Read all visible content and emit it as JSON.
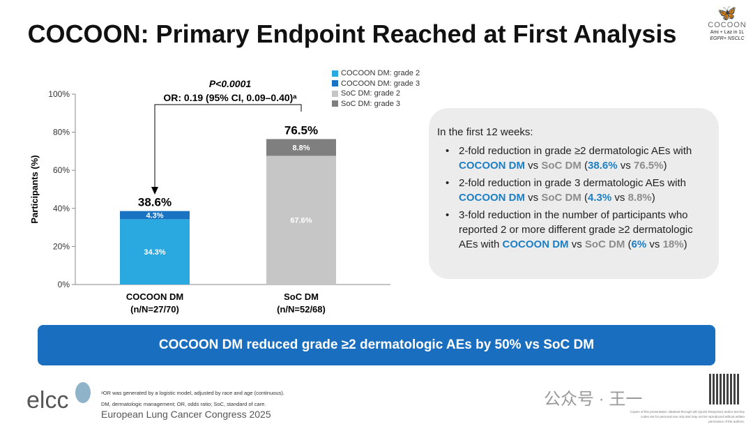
{
  "title": "COCOON: Primary Endpoint Reached at First Analysis",
  "logo": {
    "name": "COCOON",
    "line1": "Ami + Laz in 1L",
    "line2": "EGFR+ NSCLC"
  },
  "stat": {
    "p": "P<0.0001",
    "or": "OR: 0.19 (95% CI, 0.09–0.40)ᵃ"
  },
  "colors": {
    "cocoon_g2": "#2aa8e0",
    "cocoon_g3": "#1a72c2",
    "soc_g2": "#c6c6c6",
    "soc_g3": "#7f7f7f"
  },
  "chart_data": {
    "type": "bar",
    "stacked": true,
    "categories": [
      "COCOON DM",
      "SoC DM"
    ],
    "category_sublabels": [
      "(n/N=27/70)",
      "(n/N=52/68)"
    ],
    "series": [
      {
        "name": "COCOON DM: grade 2",
        "values": [
          34.3,
          null
        ],
        "labels": [
          "34.3%",
          ""
        ]
      },
      {
        "name": "COCOON DM: grade 3",
        "values": [
          4.3,
          null
        ],
        "labels": [
          "4.3%",
          ""
        ]
      },
      {
        "name": "SoC DM: grade 2",
        "values": [
          null,
          67.6
        ],
        "labels": [
          "",
          "67.6%"
        ]
      },
      {
        "name": "SoC DM: grade 3",
        "values": [
          null,
          8.8
        ],
        "labels": [
          "",
          "8.8%"
        ]
      }
    ],
    "totals": [
      "38.6%",
      "76.5%"
    ],
    "ylabel": "Participants (%)",
    "ylim": [
      0,
      100
    ],
    "yticks": [
      "0%",
      "20%",
      "40%",
      "60%",
      "80%",
      "100%"
    ],
    "legend_position": "top-right"
  },
  "box": {
    "intro": "In the first 12 weeks:",
    "b1": {
      "a": "2-fold reduction in grade ≥2 dermatologic AEs with ",
      "c": "COCOON DM",
      "vs": " vs ",
      "s": "SoC DM",
      "p1": " (",
      "v1": "38.6%",
      "vs2": " vs ",
      "v2": "76.5%",
      "end": ")"
    },
    "b2": {
      "a": "2-fold reduction in grade 3 dermatologic AEs with ",
      "c": "COCOON DM",
      "vs": " vs ",
      "s": "SoC DM",
      "p1": " (",
      "v1": "4.3%",
      "vs2": " vs ",
      "v2": "8.8%",
      "end": ")"
    },
    "b3": {
      "a": "3-fold reduction in the number of participants who reported 2 or more different grade ≥2 dermatologic AEs with ",
      "c": "COCOON DM",
      "vs": " vs ",
      "s": "SoC DM",
      "p1": " (",
      "v1": "6%",
      "vs2": " vs ",
      "v2": "18%",
      "end": ")"
    }
  },
  "banner": "COCOON DM reduced grade ≥2 dermatologic AEs by 50% vs SoC DM",
  "footer": {
    "logo": "elcc",
    "fn1": "ᵃOR was generated by a logistic model, adjusted by race and age (continuous).",
    "fn2": "DM, dermatologic management; OR, odds ratio; SoC, standard of care.",
    "congress": "European Lung Cancer Congress 2025",
    "watermark": "公众号 · 王一",
    "copyright": "Copies of this presentation obtained through QR (Quick Response) and/or text key codes are for personal use only and may not be reproduced without written permission of the authors."
  }
}
